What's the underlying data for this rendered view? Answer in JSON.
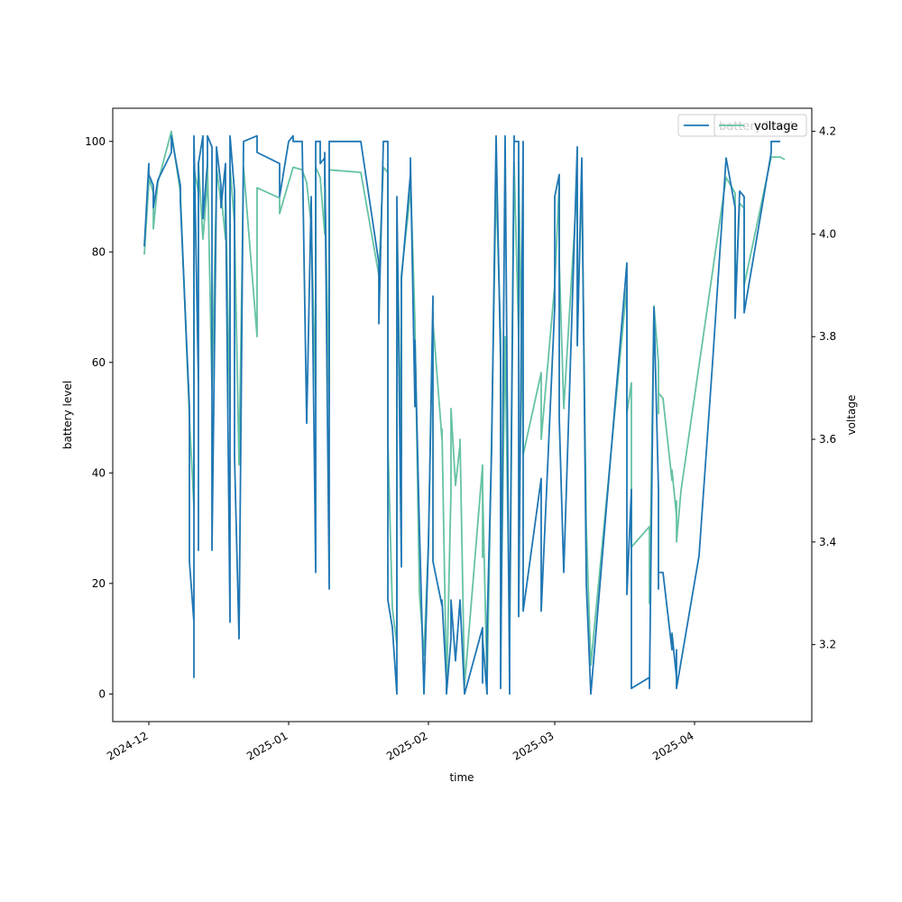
{
  "chart_data": {
    "type": "line",
    "title": "",
    "xlabel": "time",
    "ylabel_left": "battery level",
    "ylabel_right": "voltage",
    "x_ticks": [
      "2024-12",
      "2025-01",
      "2025-02",
      "2025-03",
      "2025-04"
    ],
    "xlim": [
      "2024-11-23",
      "2025-04-27"
    ],
    "ylim_left": [
      -5,
      106
    ],
    "ylim_right": [
      3.05,
      4.245
    ],
    "y_ticks_left": [
      0,
      20,
      40,
      60,
      80,
      100
    ],
    "y_ticks_right": [
      3.2,
      3.4,
      3.6,
      3.8,
      4.0,
      4.2
    ],
    "grid": false,
    "legend_placement": "top-right",
    "series": [
      {
        "name": "battery level",
        "axis": "left",
        "color": "#1f77b4",
        "points": [
          [
            "2024-11-30",
            81
          ],
          [
            "2024-12-01",
            96
          ],
          [
            "2024-12-01",
            94
          ],
          [
            "2024-12-02",
            92
          ],
          [
            "2024-12-02",
            88
          ],
          [
            "2024-12-03",
            93
          ],
          [
            "2024-12-06",
            98
          ],
          [
            "2024-12-06",
            101
          ],
          [
            "2024-12-08",
            92
          ],
          [
            "2024-12-08",
            89
          ],
          [
            "2024-12-10",
            52
          ],
          [
            "2024-12-10",
            24
          ],
          [
            "2024-12-11",
            13
          ],
          [
            "2024-12-11",
            3
          ],
          [
            "2024-12-11",
            101
          ],
          [
            "2024-12-12",
            56
          ],
          [
            "2024-12-12",
            26
          ],
          [
            "2024-12-12",
            96
          ],
          [
            "2024-12-13",
            101
          ],
          [
            "2024-12-13",
            86
          ],
          [
            "2024-12-14",
            96
          ],
          [
            "2024-12-14",
            101
          ],
          [
            "2024-12-15",
            99
          ],
          [
            "2024-12-15",
            56
          ],
          [
            "2024-12-15",
            26
          ],
          [
            "2024-12-16",
            92
          ],
          [
            "2024-12-16",
            99
          ],
          [
            "2024-12-17",
            92
          ],
          [
            "2024-12-17",
            88
          ],
          [
            "2024-12-18",
            96
          ],
          [
            "2024-12-18",
            92
          ],
          [
            "2024-12-19",
            13
          ],
          [
            "2024-12-19",
            101
          ],
          [
            "2024-12-20",
            91
          ],
          [
            "2024-12-20",
            43
          ],
          [
            "2024-12-21",
            10
          ],
          [
            "2024-12-22",
            100
          ],
          [
            "2024-12-25",
            101
          ],
          [
            "2024-12-25",
            98
          ],
          [
            "2024-12-30",
            96
          ],
          [
            "2024-12-30",
            90
          ],
          [
            "2025-01-01",
            100
          ],
          [
            "2025-01-02",
            101
          ],
          [
            "2025-01-02",
            100
          ],
          [
            "2025-01-04",
            100
          ],
          [
            "2025-01-05",
            49
          ],
          [
            "2025-01-06",
            90
          ],
          [
            "2025-01-07",
            22
          ],
          [
            "2025-01-07",
            100
          ],
          [
            "2025-01-08",
            100
          ],
          [
            "2025-01-08",
            96
          ],
          [
            "2025-01-09",
            97
          ],
          [
            "2025-01-09",
            92
          ],
          [
            "2025-01-09",
            98
          ],
          [
            "2025-01-10",
            19
          ],
          [
            "2025-01-10",
            100
          ],
          [
            "2025-01-17",
            100
          ],
          [
            "2025-01-21",
            78
          ],
          [
            "2025-01-21",
            67
          ],
          [
            "2025-01-22",
            100
          ],
          [
            "2025-01-23",
            100
          ],
          [
            "2025-01-23",
            17
          ],
          [
            "2025-01-24",
            12
          ],
          [
            "2025-01-25",
            0
          ],
          [
            "2025-01-25",
            90
          ],
          [
            "2025-01-26",
            23
          ],
          [
            "2025-01-26",
            75
          ],
          [
            "2025-01-28",
            94
          ],
          [
            "2025-01-28",
            97
          ],
          [
            "2025-01-29",
            52
          ],
          [
            "2025-01-29",
            64
          ],
          [
            "2025-01-30",
            30
          ],
          [
            "2025-01-31",
            0
          ],
          [
            "2025-02-01",
            27
          ],
          [
            "2025-02-02",
            72
          ],
          [
            "2025-02-02",
            24
          ],
          [
            "2025-02-04",
            16
          ],
          [
            "2025-02-04",
            17
          ],
          [
            "2025-02-05",
            2
          ],
          [
            "2025-02-05",
            0
          ],
          [
            "2025-02-06",
            10
          ],
          [
            "2025-02-06",
            17
          ],
          [
            "2025-02-07",
            6
          ],
          [
            "2025-02-08",
            17
          ],
          [
            "2025-02-08",
            17
          ],
          [
            "2025-02-09",
            0
          ],
          [
            "2025-02-13",
            12
          ],
          [
            "2025-02-13",
            2
          ],
          [
            "2025-02-13",
            10
          ],
          [
            "2025-02-14",
            0
          ],
          [
            "2025-02-14",
            12
          ],
          [
            "2025-02-15",
            44
          ],
          [
            "2025-02-16",
            101
          ],
          [
            "2025-02-17",
            60
          ],
          [
            "2025-02-17",
            1
          ],
          [
            "2025-02-18",
            101
          ],
          [
            "2025-02-19",
            0
          ],
          [
            "2025-02-19",
            12
          ],
          [
            "2025-02-20",
            101
          ],
          [
            "2025-02-20",
            100
          ],
          [
            "2025-02-21",
            100
          ],
          [
            "2025-02-21",
            14
          ],
          [
            "2025-02-22",
            100
          ],
          [
            "2025-02-22",
            15
          ],
          [
            "2025-02-26",
            39
          ],
          [
            "2025-02-26",
            15
          ],
          [
            "2025-03-01",
            70
          ],
          [
            "2025-03-01",
            90
          ],
          [
            "2025-03-02",
            94
          ],
          [
            "2025-03-02",
            50
          ],
          [
            "2025-03-03",
            22
          ],
          [
            "2025-03-06",
            99
          ],
          [
            "2025-03-06",
            63
          ],
          [
            "2025-03-07",
            97
          ],
          [
            "2025-03-08",
            20
          ],
          [
            "2025-03-09",
            0
          ],
          [
            "2025-03-17",
            78
          ],
          [
            "2025-03-17",
            18
          ],
          [
            "2025-03-18",
            37
          ],
          [
            "2025-03-18",
            1
          ],
          [
            "2025-03-22",
            3
          ],
          [
            "2025-03-22",
            1
          ],
          [
            "2025-03-23",
            70
          ],
          [
            "2025-03-24",
            37
          ],
          [
            "2025-03-24",
            19
          ],
          [
            "2025-03-24",
            22
          ],
          [
            "2025-03-25",
            22
          ],
          [
            "2025-03-27",
            8
          ],
          [
            "2025-03-27",
            11
          ],
          [
            "2025-03-28",
            3
          ],
          [
            "2025-03-28",
            8
          ],
          [
            "2025-03-28",
            1
          ],
          [
            "2025-04-02",
            25
          ],
          [
            "2025-04-05",
            60
          ],
          [
            "2025-04-08",
            97
          ],
          [
            "2025-04-10",
            88
          ],
          [
            "2025-04-10",
            68
          ],
          [
            "2025-04-11",
            91
          ],
          [
            "2025-04-12",
            90
          ],
          [
            "2025-04-12",
            69
          ],
          [
            "2025-04-18",
            98
          ],
          [
            "2025-04-18",
            100
          ],
          [
            "2025-04-20",
            100
          ]
        ]
      },
      {
        "name": "voltage",
        "axis": "right",
        "color": "#66c2a5",
        "points": [
          [
            "2024-11-30",
            3.96
          ],
          [
            "2024-12-01",
            4.1
          ],
          [
            "2024-12-01",
            4.11
          ],
          [
            "2024-12-02",
            4.08
          ],
          [
            "2024-12-02",
            4.01
          ],
          [
            "2024-12-03",
            4.1
          ],
          [
            "2024-12-06",
            4.2
          ],
          [
            "2024-12-08",
            4.08
          ],
          [
            "2024-12-10",
            3.64
          ],
          [
            "2024-12-11",
            3.47
          ],
          [
            "2024-12-11",
            4.13
          ],
          [
            "2024-12-12",
            4.08
          ],
          [
            "2024-12-12",
            4.14
          ],
          [
            "2024-12-13",
            3.99
          ],
          [
            "2024-12-14",
            4.1
          ],
          [
            "2024-12-14",
            4.14
          ],
          [
            "2024-12-15",
            3.7
          ],
          [
            "2024-12-16",
            4.1
          ],
          [
            "2024-12-16",
            4.13
          ],
          [
            "2024-12-17",
            4.06
          ],
          [
            "2024-12-17",
            4.08
          ],
          [
            "2024-12-18",
            3.99
          ],
          [
            "2024-12-18",
            4.08
          ],
          [
            "2024-12-19",
            3.64
          ],
          [
            "2024-12-19",
            4.13
          ],
          [
            "2024-12-20",
            4.02
          ],
          [
            "2024-12-21",
            3.55
          ],
          [
            "2024-12-22",
            4.13
          ],
          [
            "2024-12-25",
            3.8
          ],
          [
            "2024-12-25",
            4.09
          ],
          [
            "2024-12-30",
            4.07
          ],
          [
            "2024-12-30",
            4.04
          ],
          [
            "2025-01-01",
            4.1
          ],
          [
            "2025-01-02",
            4.13
          ],
          [
            "2025-01-04",
            4.125
          ],
          [
            "2025-01-05",
            4.1
          ],
          [
            "2025-01-06",
            4.02
          ],
          [
            "2025-01-07",
            3.69
          ],
          [
            "2025-01-07",
            4.13
          ],
          [
            "2025-01-08",
            4.11
          ],
          [
            "2025-01-09",
            4.0
          ],
          [
            "2025-01-09",
            4.11
          ],
          [
            "2025-01-10",
            3.67
          ],
          [
            "2025-01-10",
            4.125
          ],
          [
            "2025-01-17",
            4.12
          ],
          [
            "2025-01-21",
            3.92
          ],
          [
            "2025-01-22",
            4.13
          ],
          [
            "2025-01-23",
            4.12
          ],
          [
            "2025-01-23",
            3.6
          ],
          [
            "2025-01-24",
            3.27
          ],
          [
            "2025-01-25",
            3.2
          ],
          [
            "2025-01-25",
            4.03
          ],
          [
            "2025-01-26",
            3.56
          ],
          [
            "2025-01-26",
            3.92
          ],
          [
            "2025-01-28",
            4.08
          ],
          [
            "2025-01-28",
            4.12
          ],
          [
            "2025-01-29",
            3.83
          ],
          [
            "2025-01-29",
            3.82
          ],
          [
            "2025-01-30",
            3.3
          ],
          [
            "2025-01-31",
            3.18
          ],
          [
            "2025-02-01",
            3.4
          ],
          [
            "2025-02-02",
            3.85
          ],
          [
            "2025-02-02",
            3.83
          ],
          [
            "2025-02-04",
            3.6
          ],
          [
            "2025-02-04",
            3.62
          ],
          [
            "2025-02-05",
            3.12
          ],
          [
            "2025-02-05",
            3.11
          ],
          [
            "2025-02-06",
            3.5
          ],
          [
            "2025-02-06",
            3.66
          ],
          [
            "2025-02-07",
            3.51
          ],
          [
            "2025-02-08",
            3.59
          ],
          [
            "2025-02-08",
            3.6
          ],
          [
            "2025-02-09",
            3.12
          ],
          [
            "2025-02-13",
            3.55
          ],
          [
            "2025-02-13",
            3.37
          ],
          [
            "2025-02-13",
            3.51
          ],
          [
            "2025-02-14",
            3.12
          ],
          [
            "2025-02-15",
            3.6
          ],
          [
            "2025-02-16",
            4.1
          ],
          [
            "2025-02-17",
            3.8
          ],
          [
            "2025-02-17",
            3.2
          ],
          [
            "2025-02-18",
            3.8
          ],
          [
            "2025-02-19",
            3.2
          ],
          [
            "2025-02-20",
            4.14
          ],
          [
            "2025-02-21",
            3.8
          ],
          [
            "2025-02-21",
            4.14
          ],
          [
            "2025-02-22",
            3.57
          ],
          [
            "2025-02-26",
            3.73
          ],
          [
            "2025-02-26",
            3.6
          ],
          [
            "2025-03-01",
            3.9
          ],
          [
            "2025-03-02",
            4.1
          ],
          [
            "2025-03-02",
            3.95
          ],
          [
            "2025-03-03",
            3.66
          ],
          [
            "2025-03-06",
            4.1
          ],
          [
            "2025-03-06",
            3.8
          ],
          [
            "2025-03-07",
            4.1
          ],
          [
            "2025-03-08",
            3.43
          ],
          [
            "2025-03-09",
            3.16
          ],
          [
            "2025-03-17",
            3.9
          ],
          [
            "2025-03-17",
            3.65
          ],
          [
            "2025-03-18",
            3.71
          ],
          [
            "2025-03-18",
            3.39
          ],
          [
            "2025-03-22",
            3.43
          ],
          [
            "2025-03-22",
            3.28
          ],
          [
            "2025-03-23",
            3.86
          ],
          [
            "2025-03-24",
            3.75
          ],
          [
            "2025-03-24",
            3.65
          ],
          [
            "2025-03-24",
            3.69
          ],
          [
            "2025-03-25",
            3.68
          ],
          [
            "2025-03-27",
            3.52
          ],
          [
            "2025-03-27",
            3.54
          ],
          [
            "2025-03-28",
            3.45
          ],
          [
            "2025-03-28",
            3.48
          ],
          [
            "2025-03-28",
            3.4
          ],
          [
            "2025-03-29",
            3.5
          ],
          [
            "2025-04-08",
            4.11
          ],
          [
            "2025-04-10",
            4.08
          ],
          [
            "2025-04-10",
            3.85
          ],
          [
            "2025-04-11",
            4.06
          ],
          [
            "2025-04-12",
            4.05
          ],
          [
            "2025-04-12",
            3.9
          ],
          [
            "2025-04-18",
            4.15
          ],
          [
            "2025-04-20",
            4.15
          ],
          [
            "2025-04-21",
            4.145
          ]
        ]
      }
    ]
  }
}
